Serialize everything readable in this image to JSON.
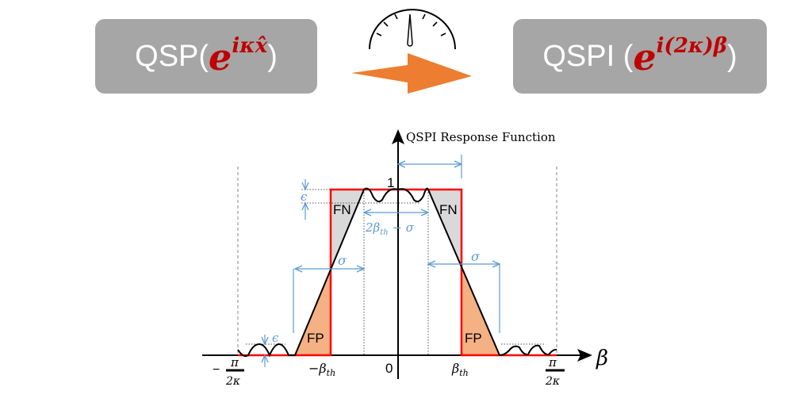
{
  "left_box": {
    "prefix": "QSP(",
    "base": "e",
    "exponent": "iκx̂",
    "suffix": ")"
  },
  "right_box": {
    "prefix": "QSPI (",
    "base": "e",
    "exponent": "i(2κ)β",
    "suffix": " )"
  },
  "icons": {
    "gauge": "speedometer-icon",
    "arrow": "right-arrow"
  },
  "colors": {
    "box": "#a6a6a6",
    "exponent": "#c00000",
    "arrow": "#ed7d31",
    "ideal": "#ff0000",
    "fn_fill": "#d9d9d9",
    "fp_fill": "#f4b183",
    "annotation": "#5b9bd5"
  },
  "diagram": {
    "y_axis_label": "QSPI Response Function",
    "x_axis_label": "β",
    "one_label": "1",
    "zero_label": "0",
    "neg_beta_th": "−β",
    "pos_beta_th": "β",
    "th_sub": "th",
    "neg_pi": "−",
    "pi": "π",
    "two_kappa": "2κ",
    "fn_label": "FN",
    "fp_label": "FP",
    "epsilon": "ϵ",
    "sigma": "σ",
    "width_label_pre": "2β",
    "width_label_post": " − σ"
  }
}
